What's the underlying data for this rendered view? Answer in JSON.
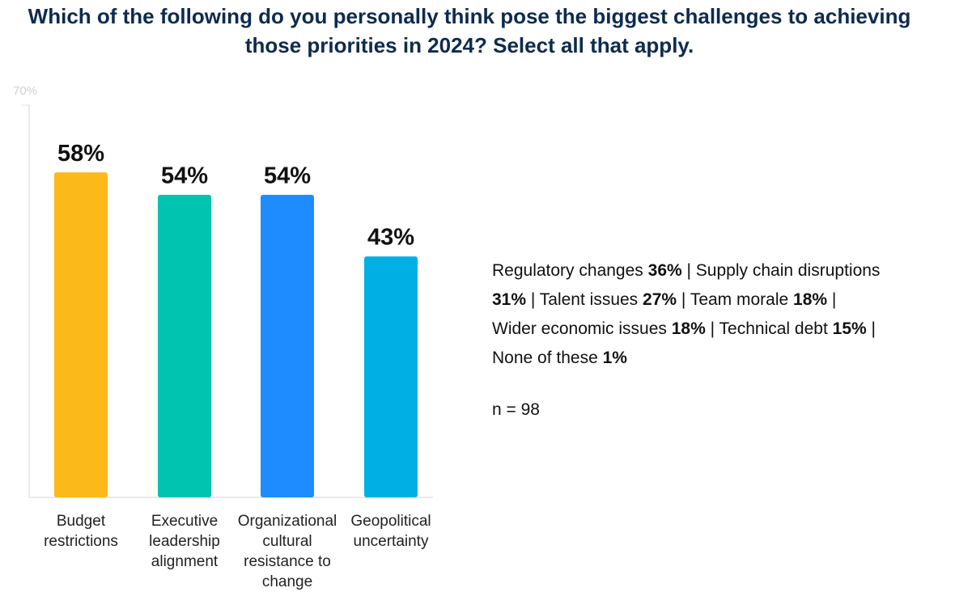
{
  "chart_data": {
    "type": "bar",
    "title": "Which of the following do you personally think pose the biggest challenges to achieving those priorities in 2024? Select all that apply.",
    "categories": [
      "Budget restrictions",
      "Executive leadership alignment",
      "Organizational cultural resistance to change",
      "Geopolitical uncertainty"
    ],
    "values": [
      58,
      54,
      54,
      43
    ],
    "value_labels": [
      "58%",
      "54%",
      "54%",
      "43%"
    ],
    "colors": [
      "#fbb91a",
      "#00c4b0",
      "#1e8cff",
      "#00b0e4"
    ],
    "ylim": [
      0,
      70
    ],
    "yticks": [
      {
        "value": 70,
        "label": "70%"
      }
    ],
    "others": {
      "categories": [
        "Regulatory changes",
        "Supply chain disruptions",
        "Talent issues",
        "Team morale",
        "Wider economic issues",
        "Technical debt",
        "None of these"
      ],
      "values": [
        36,
        31,
        27,
        18,
        18,
        15,
        1
      ],
      "value_labels": [
        "36%",
        "31%",
        "27%",
        "18%",
        "18%",
        "15%",
        "1%"
      ]
    },
    "sample_size": "n = 98"
  }
}
